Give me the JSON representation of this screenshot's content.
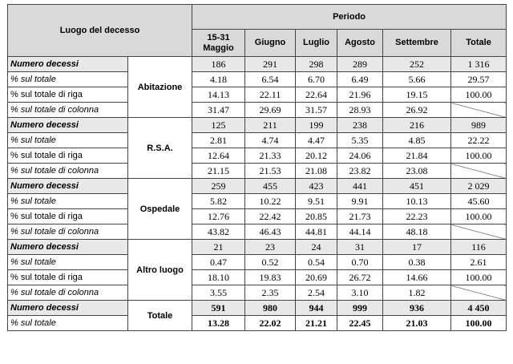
{
  "header": {
    "luogo_label": "Luogo del decesso",
    "periodo_label": "Periodo",
    "columns": [
      "15-31 Maggio",
      "Giugno",
      "Luglio",
      "Agosto",
      "Settembre",
      "Totale"
    ]
  },
  "row_labels": {
    "numero": "Numero decessi",
    "sul_totale": "% sul totale",
    "riga": "% sul totale di riga",
    "colonna": "% sul totale di colonna"
  },
  "groups": [
    {
      "name": "Abitazione",
      "numero": [
        "186",
        "291",
        "298",
        "289",
        "252",
        "1 316"
      ],
      "sul_totale": [
        "4.18",
        "6.54",
        "6.70",
        "6.49",
        "5.66",
        "29.57"
      ],
      "riga": [
        "14.13",
        "22.11",
        "22.64",
        "21.96",
        "19.15",
        "100.00"
      ],
      "colonna": [
        "31.47",
        "29.69",
        "31.57",
        "28.93",
        "26.92",
        ""
      ]
    },
    {
      "name": "R.S.A.",
      "numero": [
        "125",
        "211",
        "199",
        "238",
        "216",
        "989"
      ],
      "sul_totale": [
        "2.81",
        "4.74",
        "4.47",
        "5.35",
        "4.85",
        "22.22"
      ],
      "riga": [
        "12.64",
        "21.33",
        "20.12",
        "24.06",
        "21.84",
        "100.00"
      ],
      "colonna": [
        "21.15",
        "21.53",
        "21.08",
        "23.82",
        "23.08",
        ""
      ]
    },
    {
      "name": "Ospedale",
      "numero": [
        "259",
        "455",
        "423",
        "441",
        "451",
        "2 029"
      ],
      "sul_totale": [
        "5.82",
        "10.22",
        "9.51",
        "9.91",
        "10.13",
        "45.60"
      ],
      "riga": [
        "12.76",
        "22.42",
        "20.85",
        "21.73",
        "22.23",
        "100.00"
      ],
      "colonna": [
        "43.82",
        "46.43",
        "44.81",
        "44.14",
        "48.18",
        ""
      ]
    },
    {
      "name": "Altro luogo",
      "numero": [
        "21",
        "23",
        "24",
        "31",
        "17",
        "116"
      ],
      "sul_totale": [
        "0.47",
        "0.52",
        "0.54",
        "0.70",
        "0.38",
        "2.61"
      ],
      "riga": [
        "18.10",
        "19.83",
        "20.69",
        "26.72",
        "14.66",
        "100.00"
      ],
      "colonna": [
        "3.55",
        "2.35",
        "2.54",
        "3.10",
        "1.82",
        ""
      ]
    }
  ],
  "totale": {
    "name": "Totale",
    "numero": [
      "591",
      "980",
      "944",
      "999",
      "936",
      "4 450"
    ],
    "sul_totale": [
      "13.28",
      "22.02",
      "21.21",
      "22.45",
      "21.03",
      "100.00"
    ]
  }
}
